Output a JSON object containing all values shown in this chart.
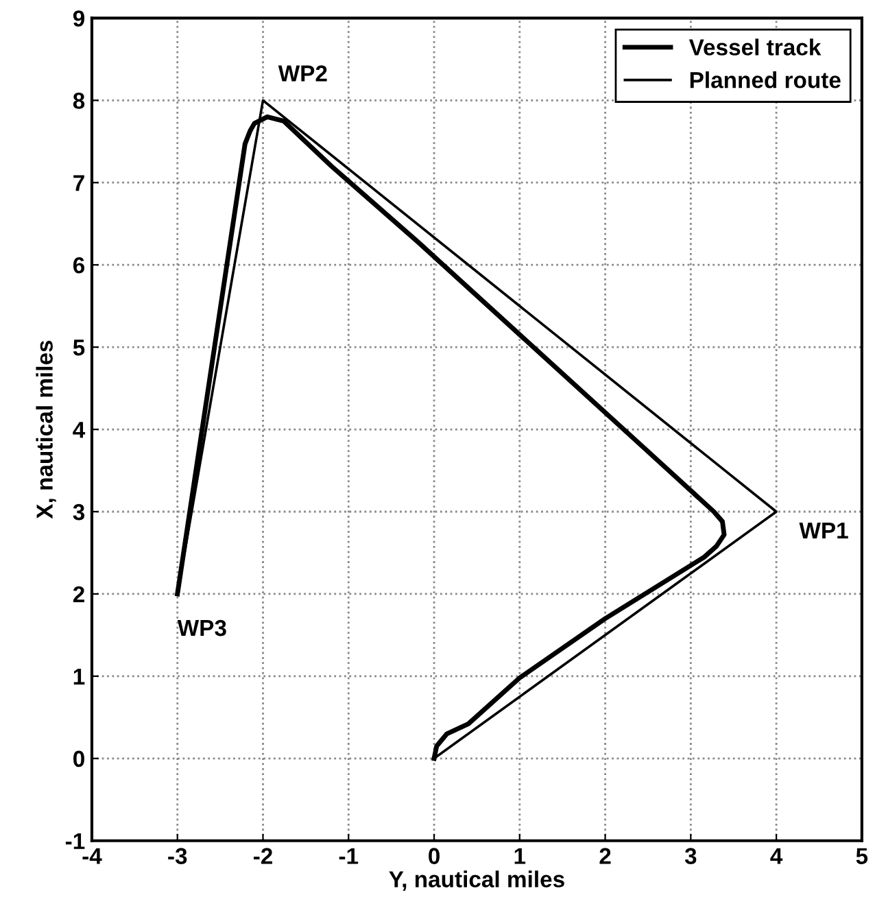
{
  "chart_data": {
    "type": "line",
    "xlabel": "Y, nautical miles",
    "ylabel": "X, nautical miles",
    "series": [
      {
        "name": "Vessel track",
        "color": "#000000",
        "x": [
          0,
          0.03,
          0.15,
          0.4,
          1,
          2,
          3.16,
          3.3,
          3.39,
          3.37,
          3.27,
          2.48,
          -0.19,
          -1.2,
          -1.76,
          -1.95,
          -2.1,
          -2.15,
          -2.21,
          -3
        ],
        "values": [
          0,
          0.15,
          0.3,
          0.42,
          0.98,
          1.7,
          2.45,
          2.58,
          2.72,
          2.88,
          3.0,
          3.75,
          6.28,
          7.2,
          7.75,
          7.8,
          7.72,
          7.63,
          7.47,
          2
        ]
      },
      {
        "name": "Planned route",
        "color": "#000000",
        "x": [
          0,
          4,
          -2,
          -3
        ],
        "values": [
          0,
          3,
          8,
          2
        ]
      }
    ],
    "annotations": [
      {
        "text": "WP1",
        "x": 4,
        "y": 3
      },
      {
        "text": "WP2",
        "x": -2,
        "y": 8
      },
      {
        "text": "WP3",
        "x": -3,
        "y": 2
      }
    ],
    "xlim": [
      -4,
      5
    ],
    "ylim": [
      -1,
      9
    ],
    "xticks": [
      -4,
      -3,
      -2,
      -1,
      0,
      1,
      2,
      3,
      4,
      5
    ],
    "yticks": [
      -1,
      0,
      1,
      2,
      3,
      4,
      5,
      6,
      7,
      8,
      9
    ],
    "grid": true,
    "legend": "top right",
    "marker": "none",
    "line_style": "solid"
  }
}
